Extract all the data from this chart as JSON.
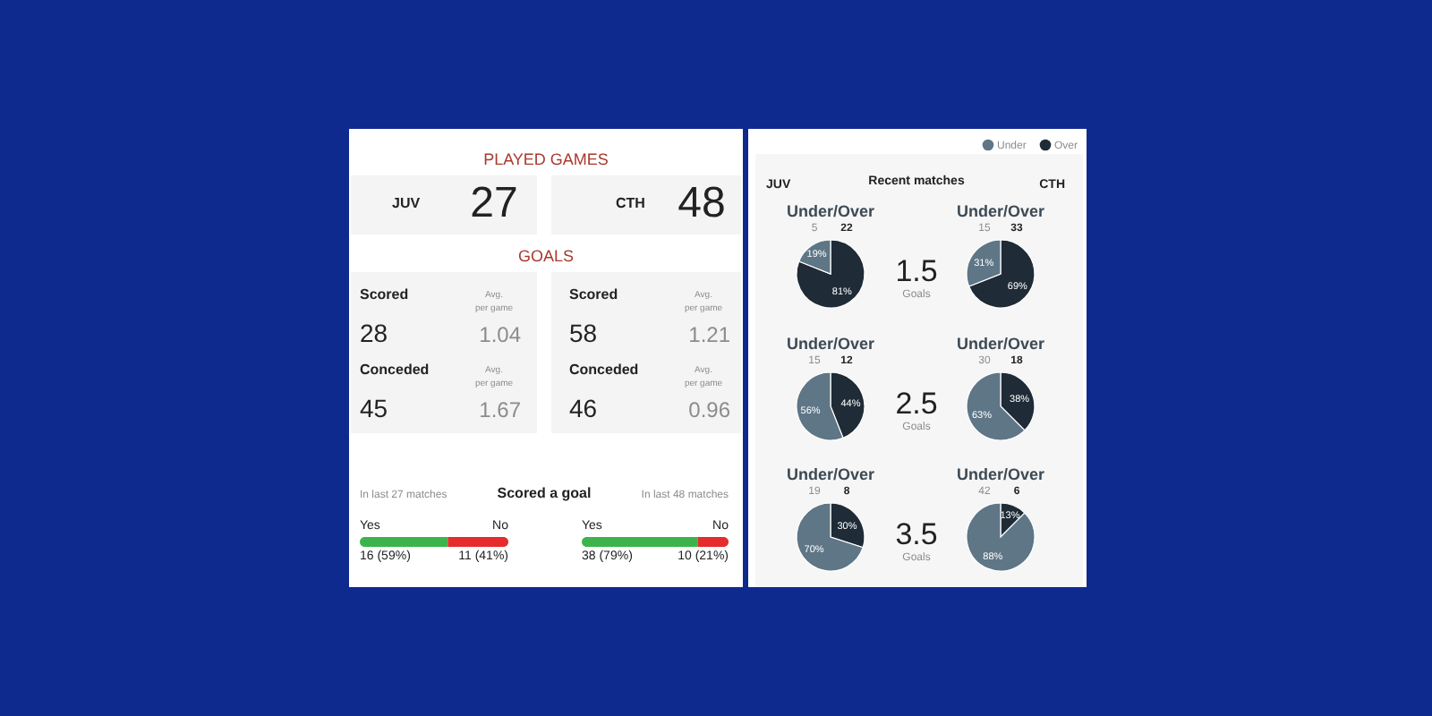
{
  "chart_data": [
    {
      "type": "other",
      "title": "PLAYED GAMES",
      "annotations": [
        "JUV",
        "27",
        "CTH",
        "48"
      ]
    },
    {
      "type": "other",
      "title": "GOALS",
      "annotations": [
        "Scored",
        "Avg.",
        "per game",
        "28",
        "1.04",
        "Conceded",
        "Avg.",
        "per game",
        "45",
        "1.67",
        "Scored",
        "Avg.",
        "per game",
        "58",
        "1.21",
        "Conceded",
        "Avg.",
        "per game",
        "46",
        "0.96"
      ]
    },
    {
      "type": "bar",
      "title": "Scored a goal",
      "annotations": [
        "In last 27 matches"
      ],
      "orientation": "horizontal",
      "stacked": true,
      "categories": [
        null
      ],
      "series": [
        {
          "name": "Yes",
          "color": "#3cb44b",
          "values": [
            16
          ],
          "value_labels": [
            "16 (59%)"
          ]
        },
        {
          "name": "No",
          "color": "#e52b2b",
          "values": [
            11
          ],
          "value_labels": [
            "11 (41%)"
          ]
        }
      ]
    },
    {
      "type": "bar",
      "annotations": [
        "In last 48 matches"
      ],
      "orientation": "horizontal",
      "stacked": true,
      "categories": [
        null
      ],
      "series": [
        {
          "name": "Yes",
          "color": "#3cb44b",
          "values": [
            38
          ],
          "value_labels": [
            "38 (79%)"
          ]
        },
        {
          "name": "No",
          "color": "#e52b2b",
          "values": [
            10
          ],
          "value_labels": [
            "10 (21%)"
          ]
        }
      ]
    },
    {
      "type": "other",
      "title": "Recent matches",
      "annotations": [
        "JUV",
        "CTH"
      ]
    },
    {
      "type": "pie",
      "title": "Under/Over",
      "categories": [
        "Under",
        "Over"
      ],
      "values": [
        19,
        81
      ],
      "colors": [
        "#5e7686",
        "#1f2b36"
      ],
      "value_labels": [
        "19%",
        "81%"
      ],
      "legend": "top right",
      "annotations": [
        "5",
        "22",
        "1.5",
        "Goals"
      ]
    },
    {
      "type": "pie",
      "title": "Under/Over",
      "values": [
        31,
        69
      ],
      "colors": [
        "#5e7686",
        "#1f2b36"
      ],
      "value_labels": [
        "31%",
        "69%"
      ],
      "annotations": [
        "15",
        "33"
      ]
    },
    {
      "type": "pie",
      "title": "Under/Over",
      "values": [
        56,
        44
      ],
      "colors": [
        "#5e7686",
        "#1f2b36"
      ],
      "value_labels": [
        "56%",
        "44%"
      ],
      "annotations": [
        "15",
        "12",
        "2.5",
        "Goals"
      ]
    },
    {
      "type": "pie",
      "title": "Under/Over",
      "values": [
        62.5,
        37.5
      ],
      "colors": [
        "#5e7686",
        "#1f2b36"
      ],
      "value_labels": [
        "63%",
        "38%"
      ],
      "annotations": [
        "30",
        "18"
      ]
    },
    {
      "type": "pie",
      "title": "Under/Over",
      "values": [
        70,
        30
      ],
      "colors": [
        "#5e7686",
        "#1f2b36"
      ],
      "value_labels": [
        "70%",
        "30%"
      ],
      "annotations": [
        "19",
        "8",
        "3.5",
        "Goals"
      ]
    },
    {
      "type": "pie",
      "title": "Under/Over",
      "values": [
        87.5,
        12.5
      ],
      "colors": [
        "#5e7686",
        "#1f2b36"
      ],
      "value_labels": [
        "88%",
        "13%"
      ],
      "annotations": [
        "42",
        "6"
      ]
    }
  ]
}
